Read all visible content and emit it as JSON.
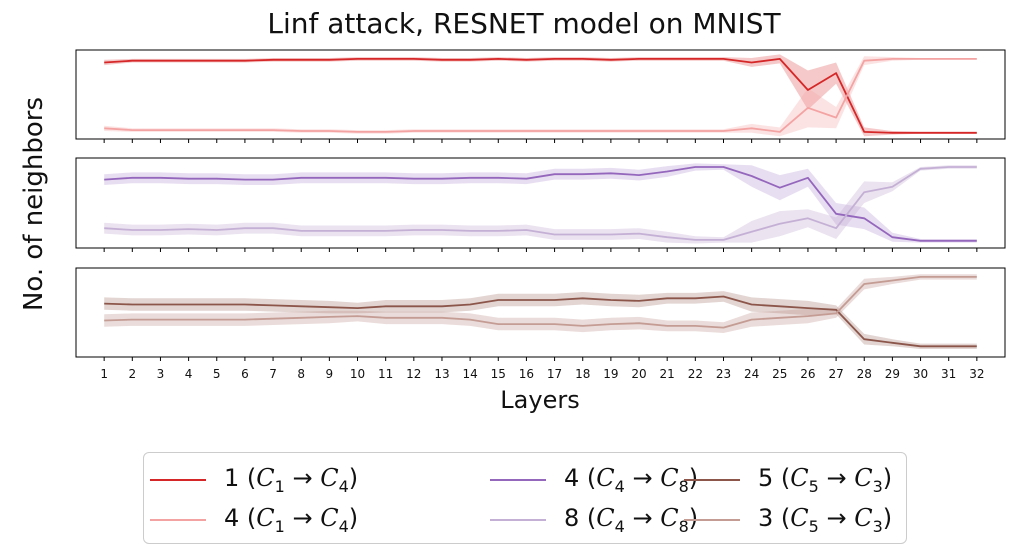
{
  "chart_data": {
    "type": "line",
    "title": "Linf attack, RESNET model on  MNIST",
    "xlabel": "Layers",
    "ylabel": "No. of neighbors",
    "x": [
      1,
      2,
      3,
      4,
      5,
      6,
      7,
      8,
      9,
      10,
      11,
      12,
      13,
      14,
      15,
      16,
      17,
      18,
      19,
      20,
      21,
      22,
      23,
      24,
      25,
      26,
      27,
      28,
      29,
      30,
      31,
      32
    ],
    "xlim": [
      0,
      33
    ],
    "ylim": [
      0,
      1
    ],
    "grid": false,
    "legend_position": "bottom-center",
    "legend_columns": 3,
    "panels": [
      {
        "ylim": [
          0,
          1
        ],
        "series": [
          {
            "name": "1 (C1→C4)",
            "legend_prefix": "1 (",
            "from": "C",
            "from_sub": "1",
            "arrow": "→",
            "to": "C",
            "to_sub": "4",
            "legend_suffix": ")",
            "color": "#d62728",
            "band_color": "#d62728",
            "band_opacity": 0.25,
            "values": [
              0.86,
              0.88,
              0.88,
              0.88,
              0.88,
              0.88,
              0.89,
              0.89,
              0.89,
              0.9,
              0.9,
              0.9,
              0.89,
              0.89,
              0.9,
              0.89,
              0.9,
              0.9,
              0.89,
              0.9,
              0.9,
              0.9,
              0.9,
              0.86,
              0.9,
              0.55,
              0.74,
              0.08,
              0.07,
              0.07,
              0.07,
              0.07
            ],
            "spread": [
              0.03,
              0.02,
              0.02,
              0.02,
              0.02,
              0.02,
              0.02,
              0.02,
              0.02,
              0.02,
              0.02,
              0.02,
              0.02,
              0.02,
              0.02,
              0.02,
              0.02,
              0.02,
              0.02,
              0.02,
              0.02,
              0.02,
              0.02,
              0.05,
              0.05,
              0.22,
              0.12,
              0.05,
              0.02,
              0.01,
              0.01,
              0.01
            ]
          },
          {
            "name": "4 (C1→C4)",
            "legend_prefix": "4 (",
            "from": "C",
            "from_sub": "1",
            "arrow": "→",
            "to": "C",
            "to_sub": "4",
            "legend_suffix": ")",
            "color": "#f4a3a3",
            "band_color": "#f4a3a3",
            "band_opacity": 0.3,
            "values": [
              0.12,
              0.1,
              0.1,
              0.1,
              0.1,
              0.1,
              0.1,
              0.09,
              0.09,
              0.08,
              0.08,
              0.09,
              0.09,
              0.09,
              0.09,
              0.09,
              0.09,
              0.09,
              0.09,
              0.09,
              0.09,
              0.09,
              0.09,
              0.12,
              0.08,
              0.35,
              0.24,
              0.88,
              0.9,
              0.9,
              0.9,
              0.9
            ],
            "spread": [
              0.03,
              0.02,
              0.02,
              0.02,
              0.02,
              0.02,
              0.02,
              0.02,
              0.02,
              0.02,
              0.02,
              0.02,
              0.02,
              0.02,
              0.02,
              0.02,
              0.02,
              0.02,
              0.02,
              0.02,
              0.02,
              0.02,
              0.02,
              0.05,
              0.05,
              0.22,
              0.12,
              0.05,
              0.02,
              0.01,
              0.01,
              0.01
            ]
          }
        ]
      },
      {
        "ylim": [
          0,
          1
        ],
        "series": [
          {
            "name": "4 (C4→C8)",
            "legend_prefix": "4 (",
            "from": "C",
            "from_sub": "4",
            "arrow": "→",
            "to": "C",
            "to_sub": "8",
            "legend_suffix": ")",
            "color": "#9467bd",
            "band_color": "#9467bd",
            "band_opacity": 0.22,
            "values": [
              0.76,
              0.78,
              0.78,
              0.77,
              0.77,
              0.76,
              0.76,
              0.78,
              0.78,
              0.78,
              0.78,
              0.77,
              0.77,
              0.78,
              0.78,
              0.77,
              0.82,
              0.82,
              0.83,
              0.81,
              0.85,
              0.9,
              0.9,
              0.8,
              0.67,
              0.78,
              0.38,
              0.33,
              0.12,
              0.08,
              0.08,
              0.08
            ],
            "spread": [
              0.06,
              0.06,
              0.06,
              0.06,
              0.06,
              0.06,
              0.06,
              0.06,
              0.06,
              0.06,
              0.06,
              0.06,
              0.06,
              0.06,
              0.06,
              0.06,
              0.06,
              0.06,
              0.06,
              0.06,
              0.06,
              0.04,
              0.03,
              0.12,
              0.14,
              0.1,
              0.12,
              0.12,
              0.05,
              0.02,
              0.02,
              0.02
            ]
          },
          {
            "name": "8 (C4→C8)",
            "legend_prefix": "8 (",
            "from": "C",
            "from_sub": "4",
            "arrow": "→",
            "to": "C",
            "to_sub": "8",
            "legend_suffix": ")",
            "color": "#c5b0d5",
            "band_color": "#c5b0d5",
            "band_opacity": 0.35,
            "values": [
              0.22,
              0.2,
              0.2,
              0.21,
              0.2,
              0.22,
              0.22,
              0.19,
              0.19,
              0.19,
              0.19,
              0.2,
              0.2,
              0.19,
              0.19,
              0.2,
              0.15,
              0.15,
              0.15,
              0.16,
              0.12,
              0.09,
              0.09,
              0.18,
              0.27,
              0.33,
              0.22,
              0.62,
              0.68,
              0.88,
              0.9,
              0.9
            ],
            "spread": [
              0.06,
              0.06,
              0.06,
              0.06,
              0.06,
              0.06,
              0.06,
              0.06,
              0.06,
              0.06,
              0.06,
              0.06,
              0.06,
              0.06,
              0.06,
              0.06,
              0.06,
              0.06,
              0.06,
              0.06,
              0.06,
              0.04,
              0.03,
              0.12,
              0.14,
              0.1,
              0.12,
              0.12,
              0.05,
              0.02,
              0.02,
              0.02
            ]
          }
        ]
      },
      {
        "ylim": [
          0,
          1
        ],
        "series": [
          {
            "name": "5 (C5→C3)",
            "legend_prefix": "5 (",
            "from": "C",
            "from_sub": "5",
            "arrow": "→",
            "to": "C",
            "to_sub": "3",
            "legend_suffix": ")",
            "color": "#8c564b",
            "band_color": "#8c564b",
            "band_opacity": 0.25,
            "values": [
              0.6,
              0.59,
              0.59,
              0.59,
              0.59,
              0.59,
              0.58,
              0.57,
              0.56,
              0.55,
              0.57,
              0.57,
              0.57,
              0.59,
              0.64,
              0.64,
              0.64,
              0.66,
              0.64,
              0.63,
              0.66,
              0.66,
              0.68,
              0.59,
              0.57,
              0.55,
              0.53,
              0.2,
              0.16,
              0.12,
              0.12,
              0.12
            ],
            "spread": [
              0.07,
              0.07,
              0.07,
              0.07,
              0.07,
              0.07,
              0.07,
              0.07,
              0.07,
              0.06,
              0.07,
              0.07,
              0.07,
              0.07,
              0.07,
              0.07,
              0.07,
              0.07,
              0.07,
              0.07,
              0.06,
              0.06,
              0.06,
              0.08,
              0.08,
              0.08,
              0.05,
              0.06,
              0.04,
              0.03,
              0.03,
              0.03
            ]
          },
          {
            "name": "3 (C5→C3)",
            "legend_prefix": "3 (",
            "from": "C",
            "from_sub": "5",
            "arrow": "→",
            "to": "C",
            "to_sub": "3",
            "legend_suffix": ")",
            "color": "#c49c94",
            "band_color": "#c49c94",
            "band_opacity": 0.35,
            "values": [
              0.41,
              0.42,
              0.42,
              0.42,
              0.42,
              0.42,
              0.43,
              0.44,
              0.45,
              0.46,
              0.44,
              0.44,
              0.44,
              0.42,
              0.37,
              0.37,
              0.37,
              0.35,
              0.37,
              0.38,
              0.35,
              0.35,
              0.33,
              0.42,
              0.44,
              0.46,
              0.49,
              0.82,
              0.86,
              0.9,
              0.9,
              0.9
            ],
            "spread": [
              0.07,
              0.07,
              0.07,
              0.07,
              0.07,
              0.07,
              0.07,
              0.07,
              0.07,
              0.06,
              0.07,
              0.07,
              0.07,
              0.07,
              0.07,
              0.07,
              0.07,
              0.07,
              0.07,
              0.07,
              0.06,
              0.06,
              0.06,
              0.08,
              0.08,
              0.08,
              0.05,
              0.06,
              0.04,
              0.03,
              0.03,
              0.03
            ]
          }
        ]
      }
    ]
  }
}
